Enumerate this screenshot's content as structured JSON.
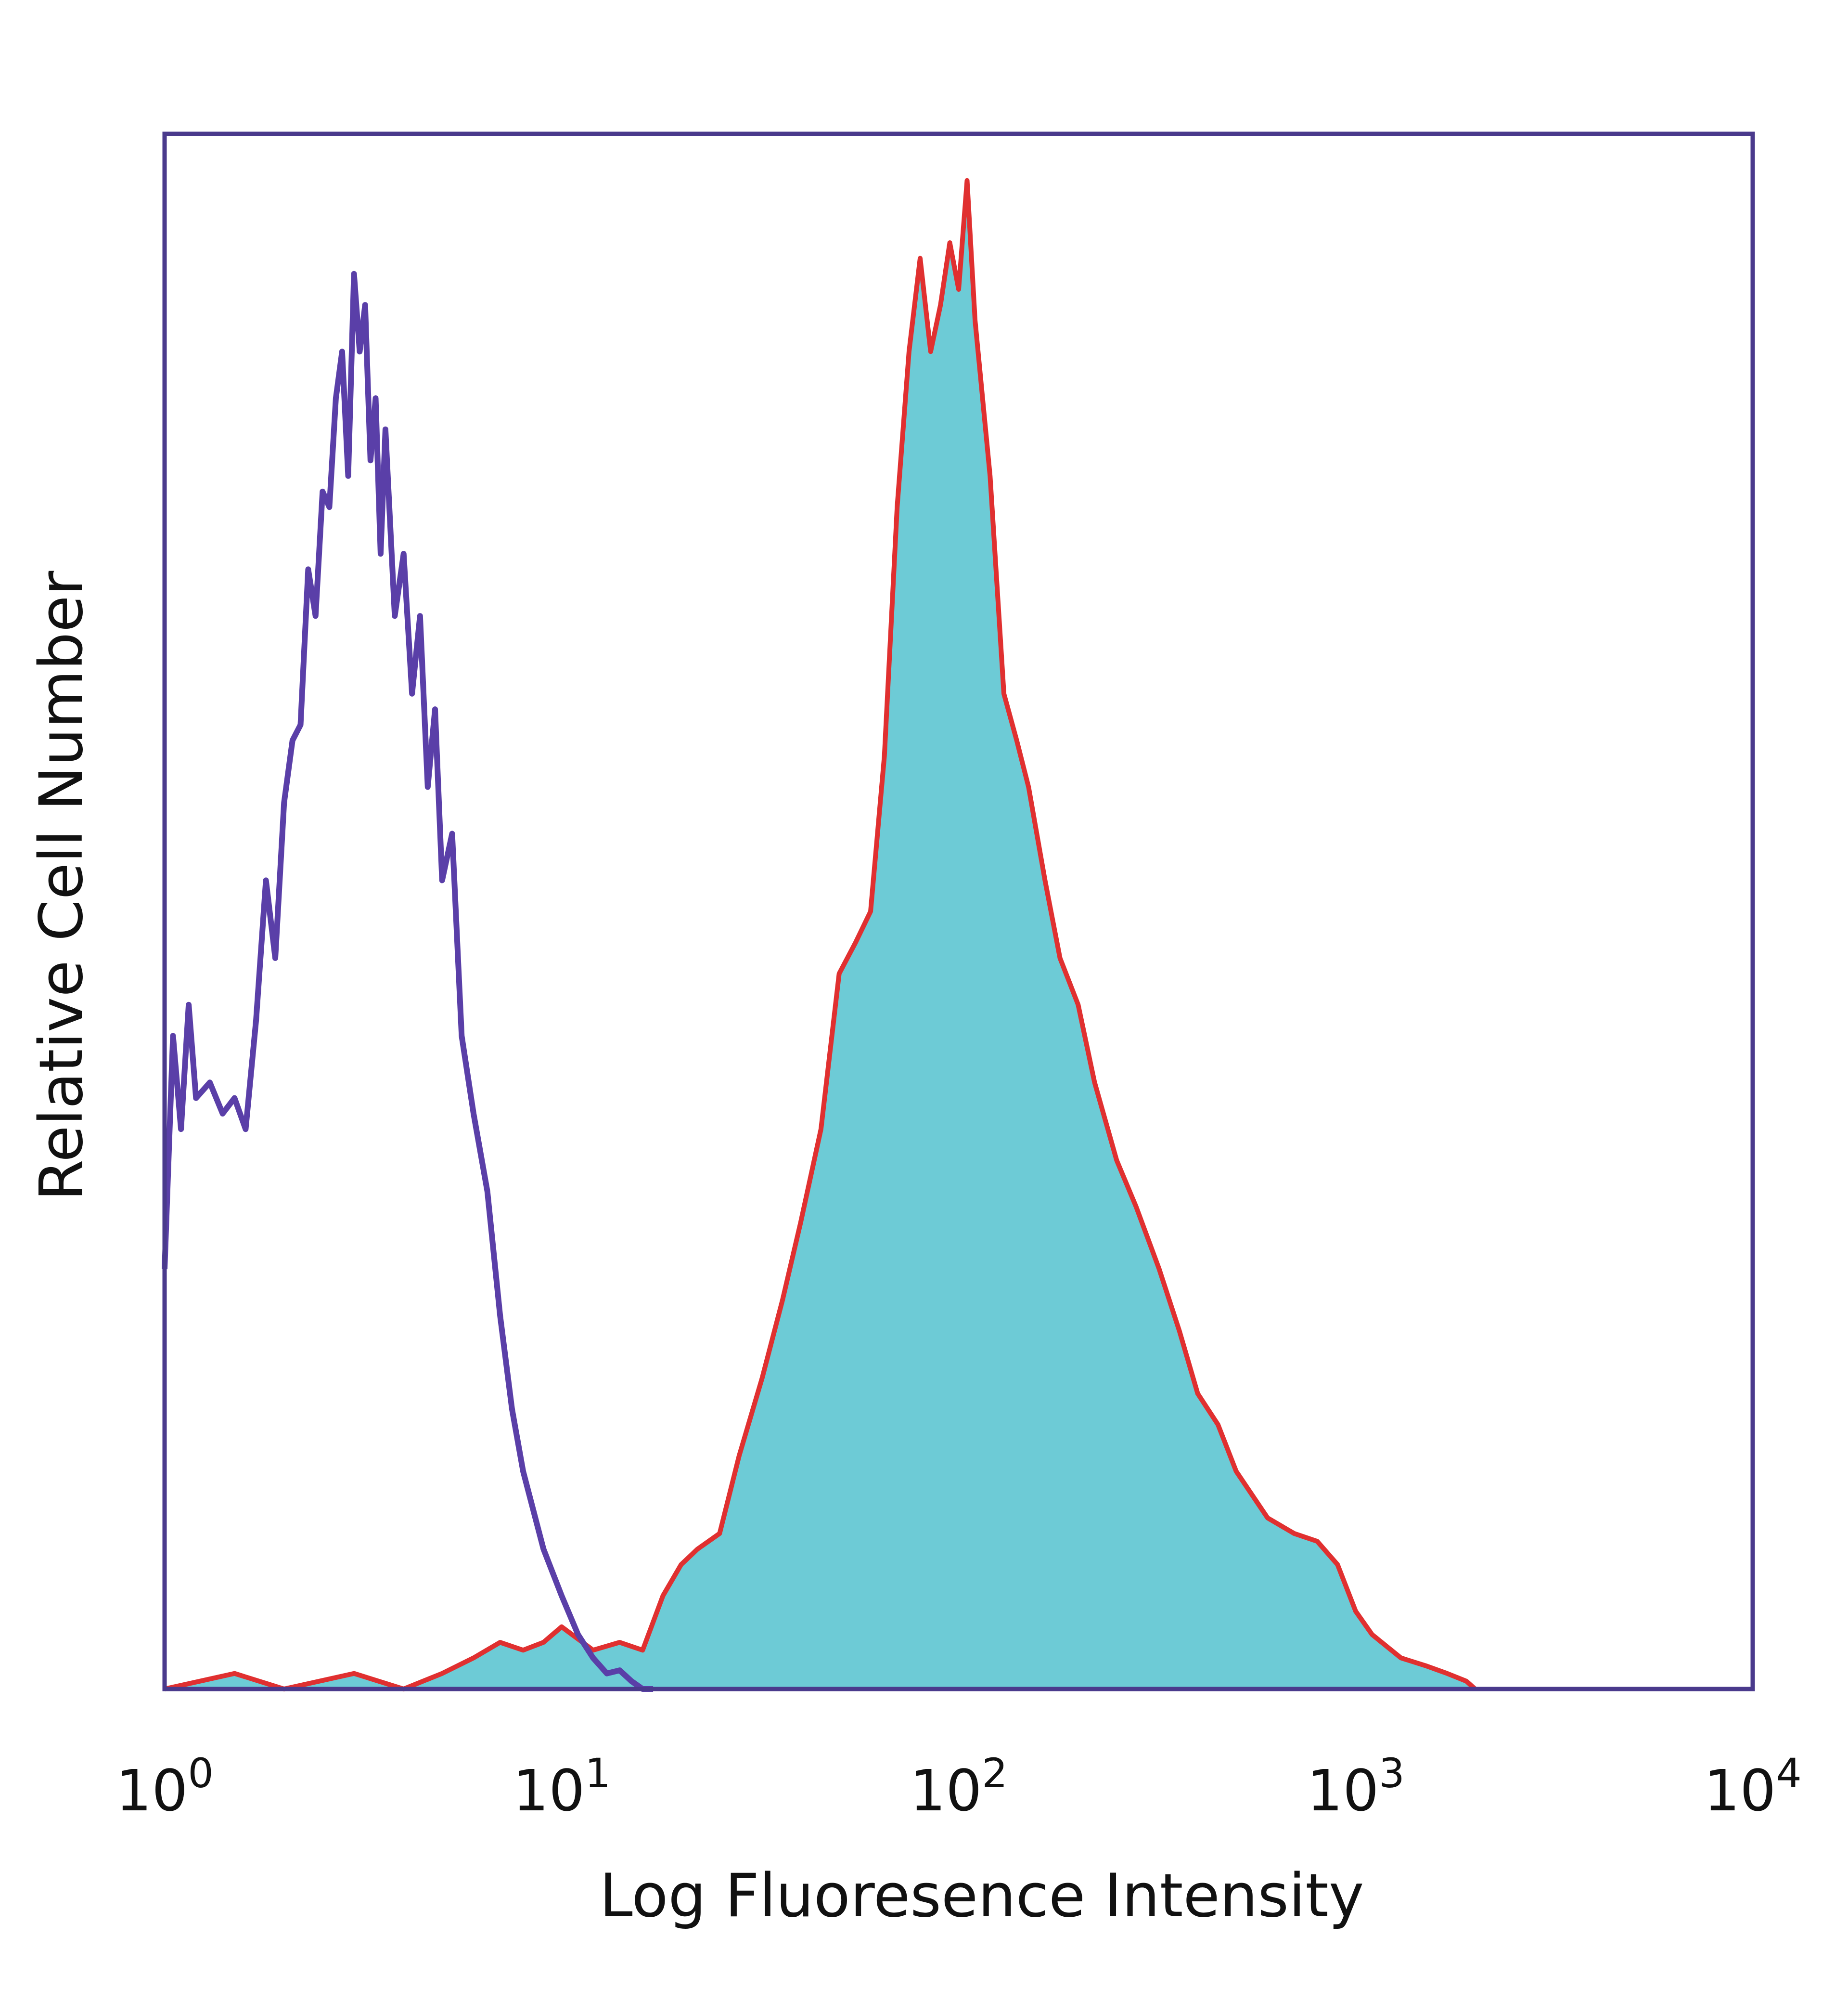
{
  "chart_data": {
    "type": "area",
    "xlabel": "Log Fluoresence Intensity",
    "ylabel": "Relative Cell Number",
    "x_scale": "log",
    "xlim": [
      1,
      10000
    ],
    "ylim": [
      0,
      1
    ],
    "grid": false,
    "legend": "none",
    "x_ticks": [
      {
        "value": 1,
        "base": "10",
        "exp": "0"
      },
      {
        "value": 10,
        "base": "10",
        "exp": "1"
      },
      {
        "value": 100,
        "base": "10",
        "exp": "2"
      },
      {
        "value": 1000,
        "base": "10",
        "exp": "3"
      },
      {
        "value": 10000,
        "base": "10",
        "exp": "4"
      }
    ],
    "colors": {
      "axes": "#4a3a8c",
      "isotype_line": "#5a3fa8",
      "stained_fill": "#6dcbd6",
      "stained_line": "#e03030"
    },
    "series": [
      {
        "style": "line",
        "color": "#5a3fa8",
        "x": [
          1.0,
          1.05,
          1.1,
          1.15,
          1.2,
          1.3,
          1.4,
          1.5,
          1.6,
          1.7,
          1.8,
          1.9,
          2.0,
          2.1,
          2.2,
          2.3,
          2.4,
          2.5,
          2.6,
          2.7,
          2.8,
          2.9,
          3.0,
          3.1,
          3.2,
          3.3,
          3.4,
          3.5,
          3.6,
          3.8,
          4.0,
          4.2,
          4.4,
          4.6,
          4.8,
          5.0,
          5.3,
          5.6,
          6.0,
          6.5,
          7.0,
          7.5,
          8.0,
          9.0,
          10.0,
          11.0,
          12.0,
          13.0,
          14.0,
          15.0,
          16.0,
          17.0
        ],
        "y": [
          0.27,
          0.42,
          0.36,
          0.44,
          0.38,
          0.39,
          0.37,
          0.38,
          0.36,
          0.43,
          0.52,
          0.47,
          0.57,
          0.61,
          0.62,
          0.72,
          0.69,
          0.77,
          0.76,
          0.83,
          0.86,
          0.78,
          0.91,
          0.86,
          0.89,
          0.79,
          0.83,
          0.73,
          0.81,
          0.69,
          0.73,
          0.64,
          0.69,
          0.58,
          0.63,
          0.52,
          0.55,
          0.42,
          0.37,
          0.32,
          0.24,
          0.18,
          0.14,
          0.09,
          0.06,
          0.035,
          0.02,
          0.01,
          0.012,
          0.005,
          0.0,
          0.0
        ]
      },
      {
        "style": "area",
        "color": "#6dcbd6",
        "outline": "#e03030",
        "x": [
          1.0,
          1.5,
          2.0,
          3.0,
          4.0,
          5.0,
          6.0,
          7.0,
          8.0,
          9.0,
          10.0,
          12.0,
          14.0,
          16.0,
          18.0,
          20.0,
          22.0,
          25.0,
          28.0,
          32.0,
          36.0,
          40.0,
          45.0,
          50.0,
          55.0,
          60.0,
          65.0,
          70.0,
          75.0,
          80.0,
          85.0,
          90.0,
          95.0,
          100.0,
          105.0,
          110.0,
          120.0,
          130.0,
          140.0,
          150.0,
          165.0,
          180.0,
          200.0,
          220.0,
          250.0,
          280.0,
          320.0,
          360.0,
          400.0,
          450.0,
          500.0,
          600.0,
          700.0,
          800.0,
          900.0,
          1000.0,
          1100.0,
          1300.0,
          1500.0,
          1700.0,
          1900.0,
          2000.0
        ],
        "y": [
          0.0,
          0.01,
          0.0,
          0.01,
          0.0,
          0.01,
          0.02,
          0.03,
          0.025,
          0.03,
          0.04,
          0.025,
          0.03,
          0.025,
          0.06,
          0.08,
          0.09,
          0.1,
          0.15,
          0.2,
          0.25,
          0.3,
          0.36,
          0.46,
          0.48,
          0.5,
          0.6,
          0.76,
          0.86,
          0.92,
          0.86,
          0.89,
          0.93,
          0.9,
          0.97,
          0.88,
          0.78,
          0.64,
          0.61,
          0.58,
          0.52,
          0.47,
          0.44,
          0.39,
          0.34,
          0.31,
          0.27,
          0.23,
          0.19,
          0.17,
          0.14,
          0.11,
          0.1,
          0.095,
          0.08,
          0.05,
          0.035,
          0.02,
          0.015,
          0.01,
          0.005,
          0.0
        ]
      }
    ]
  }
}
